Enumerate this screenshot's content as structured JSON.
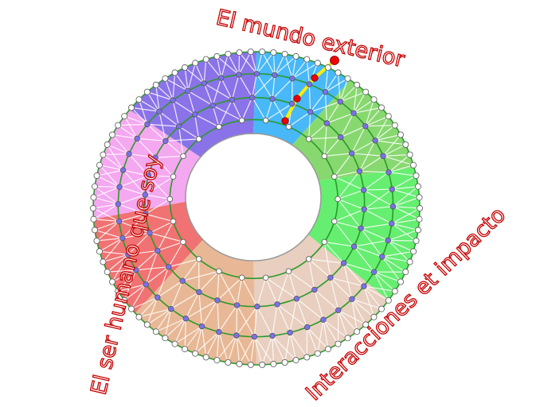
{
  "labels": {
    "top": "El mundo exterior",
    "left": "El ser humano que soy",
    "right": "Interacciones et impacto"
  },
  "sectors": [
    {
      "name": "mundo-exterior-a",
      "color": "#48b8f8",
      "from": -90,
      "to": -55
    },
    {
      "name": "mundo-exterior-b",
      "color": "#88d870",
      "from": -55,
      "to": -15
    },
    {
      "name": "interacciones-a",
      "color": "#66ee70",
      "from": -15,
      "to": 36
    },
    {
      "name": "interacciones-b",
      "color": "#e8cfbf",
      "from": 36,
      "to": 90
    },
    {
      "name": "ser-humano-a",
      "color": "#e8b896",
      "from": 90,
      "to": 138
    },
    {
      "name": "ser-humano-b",
      "color": "#f07272",
      "from": 138,
      "to": 176
    },
    {
      "name": "ser-humano-c",
      "color": "#f4a8f0",
      "from": 176,
      "to": 219
    },
    {
      "name": "ser-humano-d",
      "color": "#8a73e8",
      "from": 219,
      "to": 270
    }
  ],
  "colors": {
    "ring": "#2a9a2a",
    "node_outer": "#ffffff",
    "node_inner": "#7a70ee",
    "highlight_path": "#ffee00",
    "highlight_node": "#ee0000",
    "label_stroke": "#c40000"
  }
}
